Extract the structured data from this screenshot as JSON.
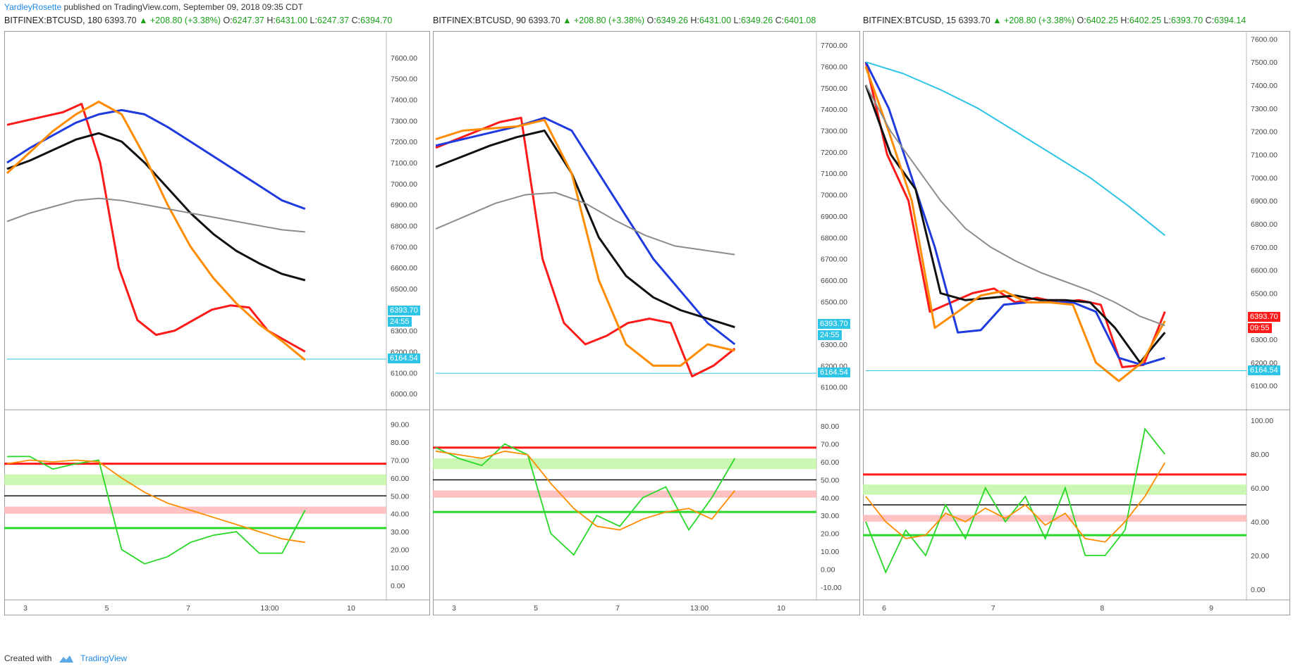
{
  "header": {
    "author": "YardleyRosette",
    "published": "published on TradingView.com, September 09, 2018 09:35 CDT"
  },
  "footer": {
    "created_with": "Created with",
    "brand": "TradingView"
  },
  "colors": {
    "up": "#1aa01a",
    "red": "#ff1a1a",
    "blue": "#1f3be0",
    "orange": "#ff8c00",
    "black": "#111111",
    "gray": "#8c8c8c",
    "cyan": "#2ec4e6",
    "green": "#27d827",
    "pinkfill": "#ffb3b3",
    "greenfill": "#bff59f"
  },
  "panels": [
    {
      "symbol": "BITFINEX:BTCUSD, 180",
      "last": "6393.70",
      "change": "▲ +208.80 (+3.38%)",
      "o": "6247.37",
      "h": "6431.00",
      "l": "6247.37",
      "c": "6394.70",
      "price_tag": "6393.70",
      "timer_tag": "24:55",
      "support_tag": "6164.54"
    },
    {
      "symbol": "BITFINEX:BTCUSD, 90",
      "last": "6393.70",
      "change": "▲ +208.80 (+3.38%)",
      "o": "6349.26",
      "h": "6431.00",
      "l": "6349.26",
      "c": "6401.08",
      "price_tag": "6393.70",
      "timer_tag": "24:55",
      "support_tag": "6164.54"
    },
    {
      "symbol": "BITFINEX:BTCUSD, 15",
      "last": "6393.70",
      "change": "▲ +208.80 (+3.38%)",
      "o": "6402.25",
      "h": "6402.25",
      "l": "6393.70",
      "c": "6394.14",
      "price_tag": "6393.70",
      "timer_tag": "09:55",
      "support_tag": "6164.54"
    }
  ],
  "chart_data": [
    {
      "type": "line",
      "title": "BITFINEX:BTCUSD, 180",
      "price_axis": {
        "ticks": [
          6000,
          6100,
          6200,
          6300,
          6400,
          6500,
          6600,
          6700,
          6800,
          6900,
          7000,
          7100,
          7200,
          7300,
          7400,
          7500,
          7600
        ],
        "ylim": [
          5950,
          7700
        ]
      },
      "osc_axis": {
        "ticks": [
          0,
          10,
          20,
          30,
          40,
          50,
          60,
          70,
          80,
          90
        ],
        "ylim": [
          -5,
          95
        ]
      },
      "time_ticks": [
        "3",
        "5",
        "7",
        "13:00",
        "10"
      ],
      "support_level": 6164.54,
      "price_series": [
        {
          "color": "red",
          "values": [
            7280,
            7300,
            7320,
            7340,
            7380,
            7100,
            6600,
            6350,
            6280,
            6300,
            6350,
            6400,
            6420,
            6410,
            6300,
            6250,
            6200
          ]
        },
        {
          "color": "blue",
          "values": [
            7100,
            7170,
            7230,
            7290,
            7330,
            7350,
            7330,
            7270,
            7200,
            7130,
            7060,
            6990,
            6920,
            6880
          ]
        },
        {
          "color": "black",
          "values": [
            7070,
            7110,
            7160,
            7210,
            7240,
            7200,
            7100,
            6980,
            6860,
            6760,
            6680,
            6620,
            6570,
            6540
          ]
        },
        {
          "color": "orange",
          "values": [
            7050,
            7150,
            7250,
            7330,
            7390,
            7330,
            7130,
            6900,
            6700,
            6550,
            6430,
            6330,
            6250,
            6160
          ]
        },
        {
          "color": "gray",
          "values": [
            6820,
            6860,
            6890,
            6920,
            6930,
            6920,
            6900,
            6880,
            6860,
            6840,
            6820,
            6800,
            6780,
            6770
          ]
        }
      ],
      "osc_series": [
        {
          "color": "green",
          "values": [
            72,
            72,
            65,
            68,
            70,
            20,
            12,
            16,
            24,
            28,
            30,
            18,
            18,
            42
          ]
        },
        {
          "color": "orange",
          "values": [
            68,
            70,
            69,
            70,
            69,
            60,
            52,
            46,
            42,
            38,
            34,
            30,
            26,
            24
          ]
        }
      ],
      "osc_levels": [
        68,
        50,
        32
      ]
    },
    {
      "type": "line",
      "title": "BITFINEX:BTCUSD, 90",
      "price_axis": {
        "ticks": [
          6100,
          6200,
          6300,
          6400,
          6500,
          6600,
          6700,
          6800,
          6900,
          7000,
          7100,
          7200,
          7300,
          7400,
          7500,
          7600,
          7700
        ],
        "ylim": [
          6020,
          7740
        ]
      },
      "osc_axis": {
        "ticks": [
          -10,
          0,
          10,
          20,
          30,
          40,
          50,
          60,
          70,
          80
        ],
        "ylim": [
          -14,
          86
        ]
      },
      "time_ticks": [
        "3",
        "5",
        "7",
        "13:00",
        "10"
      ],
      "support_level": 6164.54,
      "price_series": [
        {
          "color": "red",
          "values": [
            7220,
            7260,
            7300,
            7340,
            7360,
            6700,
            6400,
            6300,
            6340,
            6400,
            6420,
            6400,
            6150,
            6200,
            6280
          ]
        },
        {
          "color": "blue",
          "values": [
            7230,
            7260,
            7290,
            7320,
            7360,
            7300,
            7100,
            6900,
            6700,
            6550,
            6400,
            6300
          ]
        },
        {
          "color": "black",
          "values": [
            7130,
            7180,
            7230,
            7270,
            7300,
            7100,
            6800,
            6620,
            6520,
            6460,
            6420,
            6380
          ]
        },
        {
          "color": "orange",
          "values": [
            7260,
            7300,
            7310,
            7320,
            7350,
            7100,
            6600,
            6300,
            6200,
            6200,
            6300,
            6270
          ]
        },
        {
          "color": "gray",
          "values": [
            6840,
            6900,
            6960,
            7000,
            7010,
            6960,
            6880,
            6810,
            6760,
            6740,
            6720
          ]
        }
      ],
      "osc_series": [
        {
          "color": "green",
          "values": [
            68,
            62,
            58,
            70,
            64,
            20,
            8,
            30,
            24,
            40,
            46,
            22,
            40,
            62
          ]
        },
        {
          "color": "orange",
          "values": [
            66,
            64,
            62,
            66,
            64,
            48,
            34,
            24,
            22,
            28,
            32,
            34,
            28,
            44
          ]
        }
      ],
      "osc_levels": [
        68,
        50,
        32
      ]
    },
    {
      "type": "line",
      "title": "BITFINEX:BTCUSD, 15",
      "price_axis": {
        "ticks": [
          6100,
          6200,
          6300,
          6400,
          6500,
          6600,
          6700,
          6800,
          6900,
          7000,
          7100,
          7200,
          7300,
          7400,
          7500,
          7600
        ],
        "ylim": [
          6020,
          7610
        ]
      },
      "osc_axis": {
        "ticks": [
          0,
          20,
          40,
          60,
          80,
          100
        ],
        "ylim": [
          -3,
          103
        ]
      },
      "time_ticks": [
        "6",
        "7",
        "8",
        "9"
      ],
      "support_level": 6164.54,
      "price_series": [
        {
          "color": "red",
          "values": [
            7500,
            7100,
            6900,
            6420,
            6460,
            6500,
            6520,
            6460,
            6480,
            6460,
            6470,
            6450,
            6180,
            6190,
            6420
          ]
        },
        {
          "color": "blue",
          "values": [
            7500,
            7300,
            7000,
            6700,
            6330,
            6340,
            6450,
            6460,
            6460,
            6460,
            6420,
            6220,
            6190,
            6220
          ]
        },
        {
          "color": "black",
          "values": [
            7400,
            7100,
            6950,
            6500,
            6470,
            6480,
            6490,
            6470,
            6470,
            6460,
            6350,
            6200,
            6330
          ]
        },
        {
          "color": "orange",
          "values": [
            7480,
            7200,
            6900,
            6350,
            6420,
            6490,
            6510,
            6460,
            6460,
            6450,
            6200,
            6120,
            6200,
            6380
          ]
        },
        {
          "color": "gray",
          "values": [
            7400,
            7200,
            7050,
            6900,
            6780,
            6700,
            6640,
            6590,
            6550,
            6510,
            6460,
            6400,
            6360
          ]
        },
        {
          "color": "cyan",
          "values": [
            7500,
            7450,
            7380,
            7300,
            7200,
            7100,
            7000,
            6880,
            6750
          ]
        }
      ],
      "osc_series": [
        {
          "color": "green",
          "values": [
            40,
            10,
            35,
            20,
            50,
            30,
            60,
            40,
            55,
            30,
            60,
            20,
            20,
            35,
            95,
            80
          ]
        },
        {
          "color": "orange",
          "values": [
            55,
            40,
            30,
            32,
            45,
            40,
            48,
            42,
            50,
            38,
            45,
            30,
            28,
            40,
            55,
            75
          ]
        }
      ],
      "osc_levels": [
        68,
        50,
        32
      ]
    }
  ]
}
